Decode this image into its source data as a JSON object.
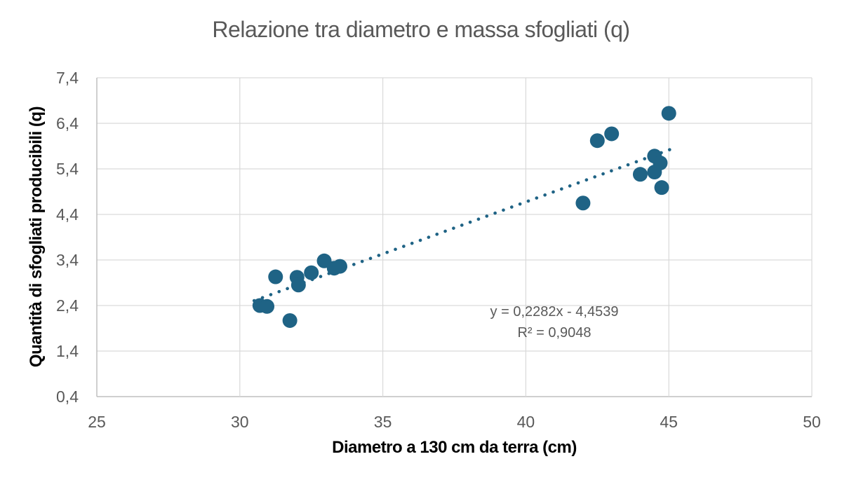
{
  "chart_data": {
    "type": "scatter",
    "title": "Relazione tra diametro e massa sfogliati (q)",
    "xlabel": "Diametro a 130 cm da terra (cm)",
    "ylabel": "Quantità di sfogliati producibili (q)",
    "xlim": [
      25,
      50
    ],
    "ylim": [
      0.4,
      7.4
    ],
    "grid": true,
    "legend": "none",
    "xticks": [
      {
        "value": 25,
        "label": "25"
      },
      {
        "value": 30,
        "label": "30"
      },
      {
        "value": 35,
        "label": "35"
      },
      {
        "value": 40,
        "label": "40"
      },
      {
        "value": 45,
        "label": "45"
      },
      {
        "value": 50,
        "label": "50"
      }
    ],
    "yticks": [
      {
        "value": 0.4,
        "label": "0,4"
      },
      {
        "value": 1.4,
        "label": "1,4"
      },
      {
        "value": 2.4,
        "label": "2,4"
      },
      {
        "value": 3.4,
        "label": "3,4"
      },
      {
        "value": 4.4,
        "label": "4,4"
      },
      {
        "value": 5.4,
        "label": "5,4"
      },
      {
        "value": 6.4,
        "label": "6,4"
      },
      {
        "value": 7.4,
        "label": "7,4"
      }
    ],
    "points": [
      {
        "x": 30.7,
        "y": 2.4
      },
      {
        "x": 30.95,
        "y": 2.38
      },
      {
        "x": 31.25,
        "y": 3.03
      },
      {
        "x": 31.75,
        "y": 2.07
      },
      {
        "x": 32.0,
        "y": 3.02
      },
      {
        "x": 32.05,
        "y": 2.85
      },
      {
        "x": 32.5,
        "y": 3.12
      },
      {
        "x": 32.95,
        "y": 3.38
      },
      {
        "x": 33.3,
        "y": 3.22
      },
      {
        "x": 33.5,
        "y": 3.26
      },
      {
        "x": 42.0,
        "y": 4.65
      },
      {
        "x": 42.5,
        "y": 6.02
      },
      {
        "x": 43.0,
        "y": 6.17
      },
      {
        "x": 44.0,
        "y": 5.28
      },
      {
        "x": 44.5,
        "y": 5.68
      },
      {
        "x": 44.7,
        "y": 5.53
      },
      {
        "x": 44.5,
        "y": 5.33
      },
      {
        "x": 44.75,
        "y": 4.99
      },
      {
        "x": 45.0,
        "y": 6.62
      }
    ],
    "trendline": {
      "type": "linear-dotted",
      "slope": 0.2282,
      "intercept": -4.4539,
      "x_start": 30.5,
      "x_end": 45.2,
      "equation_label": "y = 0,2282x - 4,4539",
      "r2_label": "R² = 0,9048"
    },
    "colors": {
      "marker": "#1F6385",
      "trendline": "#1F6385",
      "gridline": "#D9D9D9",
      "axis_line": "#BFBFBF",
      "title_text": "#595959",
      "tick_text": "#595959",
      "axis_label_text": "#000000",
      "annotation_text": "#595959",
      "background": "#FFFFFF"
    }
  }
}
